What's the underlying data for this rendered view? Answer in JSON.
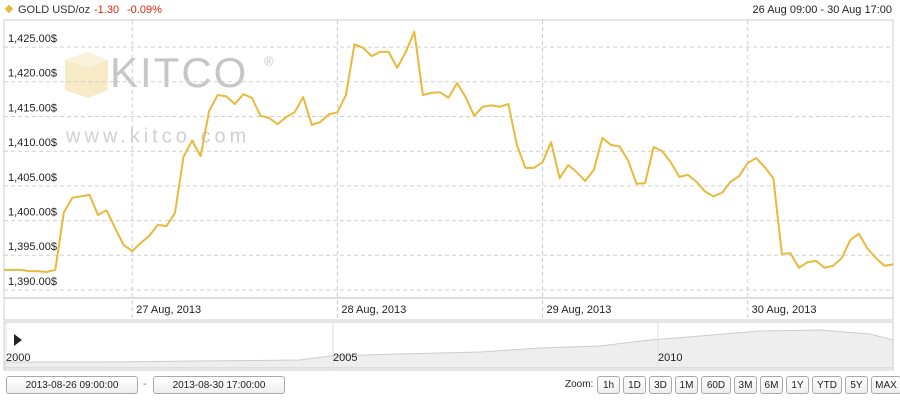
{
  "chart_data": {
    "type": "line",
    "title": "GOLD USD/oz",
    "change": "-1.30",
    "change_pct": "-0.09%",
    "range_label": "26 Aug 09:00 - 30 Aug 17:00",
    "color": "#e8b93c",
    "grid": true,
    "x": [
      "2013-08-26 09:00:00",
      "2013-08-26 10:00:00",
      "2013-08-26 11:00:00",
      "2013-08-26 12:00:00",
      "2013-08-26 13:00:00",
      "2013-08-26 14:00:00",
      "2013-08-26 15:00:00",
      "2013-08-26 16:00:00",
      "2013-08-26 17:00:00",
      "2013-08-26 18:00:00",
      "2013-08-26 19:00:00",
      "2013-08-26 20:00:00",
      "2013-08-26 21:00:00",
      "2013-08-26 22:00:00",
      "2013-08-26 23:00:00",
      "2013-08-27 00:00:00",
      "2013-08-27 01:00:00",
      "2013-08-27 02:00:00",
      "2013-08-27 03:00:00",
      "2013-08-27 04:00:00",
      "2013-08-27 05:00:00",
      "2013-08-27 06:00:00",
      "2013-08-27 07:00:00",
      "2013-08-27 08:00:00",
      "2013-08-27 09:00:00",
      "2013-08-27 10:00:00",
      "2013-08-27 11:00:00",
      "2013-08-27 12:00:00",
      "2013-08-27 13:00:00",
      "2013-08-27 14:00:00",
      "2013-08-27 15:00:00",
      "2013-08-27 16:00:00",
      "2013-08-27 17:00:00",
      "2013-08-27 18:00:00",
      "2013-08-27 19:00:00",
      "2013-08-27 20:00:00",
      "2013-08-27 21:00:00",
      "2013-08-27 22:00:00",
      "2013-08-27 23:00:00",
      "2013-08-28 00:00:00",
      "2013-08-28 01:00:00",
      "2013-08-28 02:00:00",
      "2013-08-28 03:00:00",
      "2013-08-28 04:00:00",
      "2013-08-28 05:00:00",
      "2013-08-28 06:00:00",
      "2013-08-28 07:00:00",
      "2013-08-28 08:00:00",
      "2013-08-28 09:00:00",
      "2013-08-28 10:00:00",
      "2013-08-28 11:00:00",
      "2013-08-28 12:00:00",
      "2013-08-28 13:00:00",
      "2013-08-28 14:00:00",
      "2013-08-28 15:00:00",
      "2013-08-28 16:00:00",
      "2013-08-28 17:00:00",
      "2013-08-28 18:00:00",
      "2013-08-28 19:00:00",
      "2013-08-28 20:00:00",
      "2013-08-28 21:00:00",
      "2013-08-28 22:00:00",
      "2013-08-28 23:00:00",
      "2013-08-29 00:00:00",
      "2013-08-29 01:00:00",
      "2013-08-29 02:00:00",
      "2013-08-29 03:00:00",
      "2013-08-29 04:00:00",
      "2013-08-29 05:00:00",
      "2013-08-29 06:00:00",
      "2013-08-29 07:00:00",
      "2013-08-29 08:00:00",
      "2013-08-29 09:00:00",
      "2013-08-29 10:00:00",
      "2013-08-29 11:00:00",
      "2013-08-29 12:00:00",
      "2013-08-29 13:00:00",
      "2013-08-29 14:00:00",
      "2013-08-29 15:00:00",
      "2013-08-29 16:00:00",
      "2013-08-29 17:00:00",
      "2013-08-29 18:00:00",
      "2013-08-29 19:00:00",
      "2013-08-29 20:00:00",
      "2013-08-29 21:00:00",
      "2013-08-29 22:00:00",
      "2013-08-29 23:00:00",
      "2013-08-30 00:00:00",
      "2013-08-30 01:00:00",
      "2013-08-30 02:00:00",
      "2013-08-30 03:00:00",
      "2013-08-30 04:00:00",
      "2013-08-30 05:00:00",
      "2013-08-30 06:00:00",
      "2013-08-30 07:00:00",
      "2013-08-30 08:00:00",
      "2013-08-30 09:00:00",
      "2013-08-30 10:00:00",
      "2013-08-30 11:00:00",
      "2013-08-30 12:00:00",
      "2013-08-30 13:00:00",
      "2013-08-30 14:00:00",
      "2013-08-30 15:00:00",
      "2013-08-30 16:00:00",
      "2013-08-30 17:00:00"
    ],
    "values": [
      1392.9,
      1392.9,
      1392.9,
      1392.7,
      1392.7,
      1392.6,
      1392.9,
      1401.2,
      1403.3,
      1403.5,
      1403.7,
      1400.8,
      1401.5,
      1398.9,
      1396.5,
      1395.6,
      1396.8,
      1397.8,
      1399.4,
      1399.2,
      1401.1,
      1409.2,
      1411.5,
      1409.3,
      1415.8,
      1418.1,
      1417.9,
      1416.8,
      1418.2,
      1417.7,
      1415.1,
      1414.8,
      1413.9,
      1414.9,
      1415.6,
      1417.8,
      1413.8,
      1414.2,
      1415.3,
      1415.6,
      1418.1,
      1425.4,
      1424.9,
      1423.7,
      1424.3,
      1424.3,
      1422.0,
      1424.3,
      1427.2,
      1418.1,
      1418.4,
      1418.5,
      1417.7,
      1419.8,
      1417.8,
      1415.1,
      1416.4,
      1416.6,
      1416.4,
      1416.8,
      1410.9,
      1407.6,
      1407.6,
      1408.4,
      1411.3,
      1406.1,
      1408.0,
      1407.0,
      1405.7,
      1407.3,
      1411.9,
      1410.9,
      1410.7,
      1408.7,
      1405.3,
      1405.4,
      1410.6,
      1410.0,
      1408.4,
      1406.3,
      1406.6,
      1405.6,
      1404.2,
      1403.5,
      1404.0,
      1405.6,
      1406.4,
      1408.3,
      1409.0,
      1407.7,
      1406.1,
      1395.2,
      1395.3,
      1393.2,
      1394.0,
      1394.2,
      1393.2,
      1393.5,
      1394.6,
      1397.2,
      1398.1,
      1396.0,
      1394.6,
      1393.5,
      1393.7
    ],
    "xlim": [
      "2013-08-26 09:00:00",
      "2013-08-30 17:00:00"
    ],
    "xticks": [
      {
        "value": "2013-08-27 00:00:00",
        "label": "27 Aug, 2013"
      },
      {
        "value": "2013-08-28 00:00:00",
        "label": "28 Aug, 2013"
      },
      {
        "value": "2013-08-29 00:00:00",
        "label": "29 Aug, 2013"
      },
      {
        "value": "2013-08-30 00:00:00",
        "label": "30 Aug, 2013"
      }
    ],
    "ylim": [
      1388.85,
      1428.9
    ],
    "yticks": [
      {
        "value": 1390,
        "label": "1,390.00$"
      },
      {
        "value": 1395,
        "label": "1,395.00$"
      },
      {
        "value": 1400,
        "label": "1,400.00$"
      },
      {
        "value": 1405,
        "label": "1,405.00$"
      },
      {
        "value": 1410,
        "label": "1,410.00$"
      },
      {
        "value": 1415,
        "label": "1,415.00$"
      },
      {
        "value": 1420,
        "label": "1,420.00$"
      },
      {
        "value": 1425,
        "label": "1,425.00$"
      }
    ],
    "watermark": {
      "brand": "KITCO",
      "registered": "®",
      "url": "www.kitco.com"
    },
    "navigator_years": [
      "2000",
      "2005",
      "2010"
    ],
    "range_separator": "-",
    "zoom_label": "Zoom:",
    "zoom_buttons": [
      "1h",
      "1D",
      "3D",
      "1M",
      "60D",
      "3M",
      "6M",
      "1Y",
      "YTD",
      "5Y",
      "MAX"
    ]
  }
}
